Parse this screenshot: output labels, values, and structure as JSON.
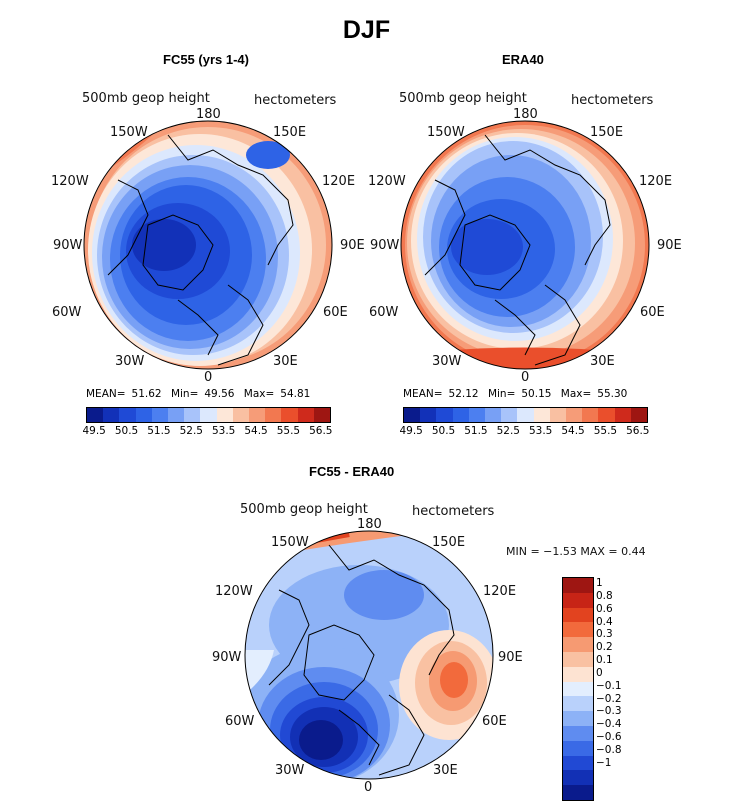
{
  "figure_title": "DJF",
  "panels": {
    "left": {
      "title": "FC55 (yrs 1-4)",
      "field_label": "500mb geop height",
      "units_label": "hectometers",
      "stats": {
        "mean_label": "MEAN=",
        "mean": "51.62",
        "min_label": "Min=",
        "min": "49.56",
        "max_label": "Max=",
        "max": "54.81"
      }
    },
    "right": {
      "title": "ERA40",
      "field_label": "500mb geop height",
      "units_label": "hectometers",
      "stats": {
        "mean_label": "MEAN=",
        "mean": "52.12",
        "min_label": "Min=",
        "min": "50.15",
        "max_label": "Max=",
        "max": "55.30"
      }
    },
    "bottom": {
      "title": "FC55 - ERA40",
      "field_label": "500mb geop height",
      "units_label": "hectometers",
      "minmax_text": "MIN =   −1.53  MAX =    0.44"
    }
  },
  "longitude_labels": {
    "top": "180",
    "ul": "150W",
    "ur": "150E",
    "l1": "120W",
    "r1": "120E",
    "l2": "90W",
    "r2": "90E",
    "l3": "60W",
    "r3": "60E",
    "ll": "30W",
    "lr": "30E",
    "bottom": "0"
  },
  "colorbar_top": {
    "colors": [
      "#0a1b8c",
      "#1231b8",
      "#1f4ad6",
      "#2e63e6",
      "#4c7ff0",
      "#78a0f5",
      "#a8c3fa",
      "#dce8fd",
      "#fde7d8",
      "#f9c0a2",
      "#f69c78",
      "#f27850",
      "#ea4f2c",
      "#cf2a1c",
      "#9e1612"
    ],
    "ticks": [
      "49.5",
      "50.5",
      "51.5",
      "52.5",
      "53.5",
      "54.5",
      "55.5",
      "56.5"
    ]
  },
  "colorbar_diff": {
    "colors": [
      "#9e1612",
      "#c72416",
      "#e2431f",
      "#f26a3c",
      "#f69a72",
      "#f9c1a2",
      "#fde3d2",
      "#e3eefe",
      "#b9d1fb",
      "#8db2f6",
      "#5f8cf0",
      "#3a6ae6",
      "#2149d4",
      "#1230b5",
      "#0a1b8c"
    ],
    "ticks": [
      "1",
      "0.8",
      "0.6",
      "0.4",
      "0.3",
      "0.2",
      "0.1",
      "0",
      "−0.1",
      "−0.2",
      "−0.3",
      "−0.4",
      "−0.6",
      "−0.8",
      "−1"
    ]
  }
}
